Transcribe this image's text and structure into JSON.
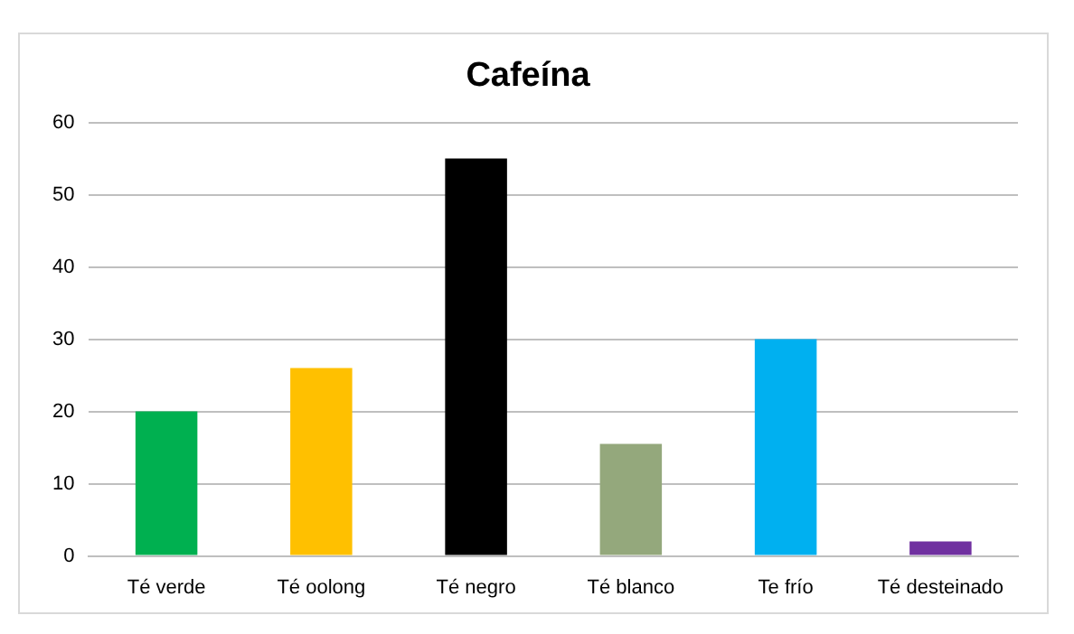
{
  "chart_data": {
    "type": "bar",
    "title": "Cafeína",
    "categories": [
      "Té verde",
      "Té oolong",
      "Té negro",
      "Té blanco",
      "Te frío",
      "Té desteinado"
    ],
    "values": [
      20,
      26,
      55,
      15.5,
      30,
      2
    ],
    "colors": [
      "#00b050",
      "#ffc000",
      "#000000",
      "#94a87c",
      "#00b0f0",
      "#7030a0"
    ],
    "ylim": [
      0,
      60
    ],
    "yticks": [
      0,
      10,
      20,
      30,
      40,
      50,
      60
    ],
    "grid": "y",
    "legend": false
  }
}
